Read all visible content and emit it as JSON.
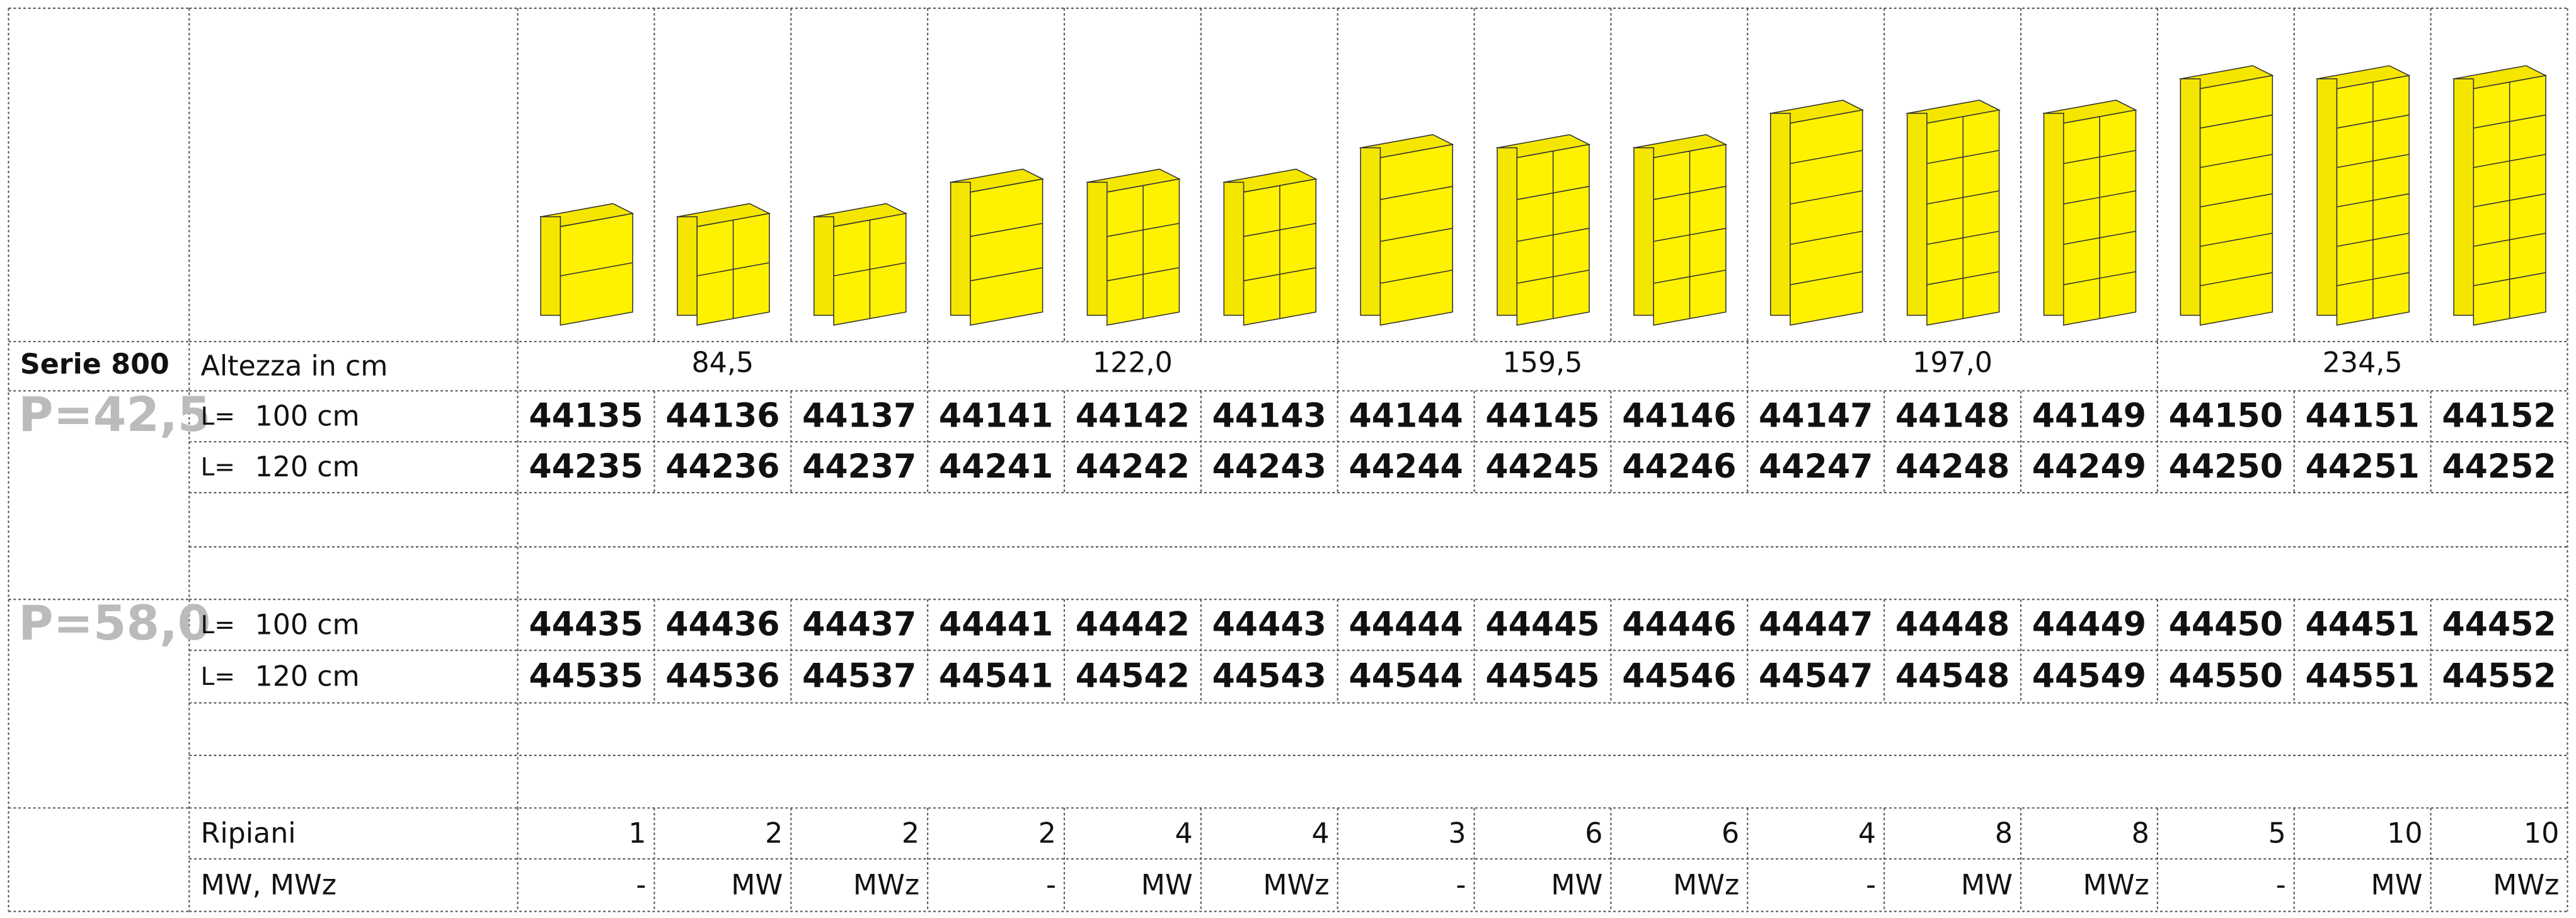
{
  "header": {
    "series": "Serie 800",
    "height_label": "Altezza in cm",
    "heights": [
      "84,5",
      "122,0",
      "159,5",
      "197,0",
      "234,5"
    ]
  },
  "depths": [
    {
      "label": "P=42,5",
      "rows": [
        {
          "prefix": "L=",
          "width": "100 cm",
          "codes": [
            44135,
            44136,
            44137,
            44141,
            44142,
            44143,
            44144,
            44145,
            44146,
            44147,
            44148,
            44149,
            44150,
            44151,
            44152
          ]
        },
        {
          "prefix": "L=",
          "width": "120 cm",
          "codes": [
            44235,
            44236,
            44237,
            44241,
            44242,
            44243,
            44244,
            44245,
            44246,
            44247,
            44248,
            44249,
            44250,
            44251,
            44252
          ]
        }
      ]
    },
    {
      "label": "P=58,0",
      "rows": [
        {
          "prefix": "L=",
          "width": "100 cm",
          "codes": [
            44435,
            44436,
            44437,
            44441,
            44442,
            44443,
            44444,
            44445,
            44446,
            44447,
            44448,
            44449,
            44450,
            44451,
            44452
          ]
        },
        {
          "prefix": "L=",
          "width": "120 cm",
          "codes": [
            44535,
            44536,
            44537,
            44541,
            44542,
            44543,
            44544,
            44545,
            44546,
            44547,
            44548,
            44549,
            44550,
            44551,
            44552
          ]
        }
      ]
    }
  ],
  "footer": {
    "shelves_label": "Ripiani",
    "shelves": [
      1,
      2,
      2,
      2,
      4,
      4,
      3,
      6,
      6,
      4,
      8,
      8,
      5,
      10,
      10
    ],
    "finish_label": "MW, MWz",
    "finishes": [
      "-",
      "MW",
      "MWz",
      "-",
      "MW",
      "MWz",
      "-",
      "MW",
      "MWz",
      "-",
      "MW",
      "MWz",
      "-",
      "MW",
      "MWz"
    ]
  }
}
